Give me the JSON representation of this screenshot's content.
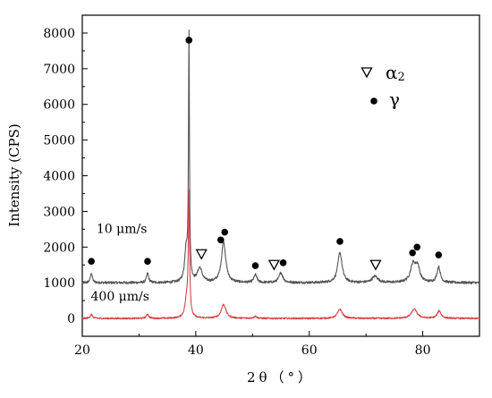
{
  "chart_data": {
    "type": "line",
    "xlabel": "2θ（°）",
    "ylabel": "Intensity (CPS)",
    "xlim": [
      20,
      90
    ],
    "ylim": [
      -500,
      8500
    ],
    "xticks": [
      20,
      40,
      60,
      80
    ],
    "yticks": [
      0,
      1000,
      2000,
      3000,
      4000,
      5000,
      6000,
      7000,
      8000
    ],
    "grid": false,
    "colors": {
      "series_10": "#555555",
      "series_400": "#d9434b",
      "axis": "#000000"
    },
    "series": [
      {
        "name": "10 μm/s",
        "baseline": 1000,
        "noise": 35,
        "peaks": [
          {
            "x": 21.6,
            "h": 280,
            "w": 0.2
          },
          {
            "x": 31.5,
            "h": 260,
            "w": 0.22
          },
          {
            "x": 38.8,
            "h": 6800,
            "w": 0.1
          },
          {
            "x": 38.3,
            "h": 900,
            "w": 0.3
          },
          {
            "x": 40.7,
            "h": 400,
            "w": 0.5
          },
          {
            "x": 44.9,
            "h": 1150,
            "w": 0.45
          },
          {
            "x": 50.5,
            "h": 220,
            "w": 0.3
          },
          {
            "x": 55.0,
            "h": 280,
            "w": 0.4
          },
          {
            "x": 65.4,
            "h": 850,
            "w": 0.45
          },
          {
            "x": 71.6,
            "h": 180,
            "w": 0.6
          },
          {
            "x": 78.3,
            "h": 500,
            "w": 0.55
          },
          {
            "x": 79.1,
            "h": 400,
            "w": 0.45
          },
          {
            "x": 82.8,
            "h": 440,
            "w": 0.35
          }
        ]
      },
      {
        "name": "400 μm/s",
        "baseline": 0,
        "noise": 22,
        "peaks": [
          {
            "x": 21.6,
            "h": 110,
            "w": 0.25
          },
          {
            "x": 31.5,
            "h": 120,
            "w": 0.25
          },
          {
            "x": 38.8,
            "h": 3380,
            "w": 0.13
          },
          {
            "x": 38.4,
            "h": 500,
            "w": 0.35
          },
          {
            "x": 44.9,
            "h": 390,
            "w": 0.5
          },
          {
            "x": 50.5,
            "h": 60,
            "w": 0.3
          },
          {
            "x": 65.4,
            "h": 260,
            "w": 0.5
          },
          {
            "x": 78.5,
            "h": 260,
            "w": 0.6
          },
          {
            "x": 82.9,
            "h": 210,
            "w": 0.4
          }
        ]
      }
    ],
    "markers": {
      "gamma": [
        {
          "x": 21.6,
          "y": 1600
        },
        {
          "x": 31.5,
          "y": 1600
        },
        {
          "x": 38.8,
          "y": 7800
        },
        {
          "x": 44.4,
          "y": 2200
        },
        {
          "x": 45.1,
          "y": 2420
        },
        {
          "x": 50.5,
          "y": 1480
        },
        {
          "x": 55.4,
          "y": 1560
        },
        {
          "x": 65.4,
          "y": 2160
        },
        {
          "x": 78.2,
          "y": 1840
        },
        {
          "x": 79.0,
          "y": 2000
        },
        {
          "x": 82.8,
          "y": 1780
        }
      ],
      "alpha2": [
        {
          "x": 41.0,
          "y": 1800
        },
        {
          "x": 53.8,
          "y": 1500
        },
        {
          "x": 71.7,
          "y": 1500
        }
      ]
    },
    "legend": {
      "position": "top-right",
      "items": [
        {
          "symbol": "triangle-down-open",
          "label": "α",
          "subscript": "2"
        },
        {
          "symbol": "circle-filled",
          "label": "γ"
        }
      ]
    },
    "annotations": [
      {
        "text": "10 μm/s",
        "x": 22.5,
        "y": 2400
      },
      {
        "text": "400 μm/s",
        "x": 21.5,
        "y": 500
      }
    ]
  }
}
